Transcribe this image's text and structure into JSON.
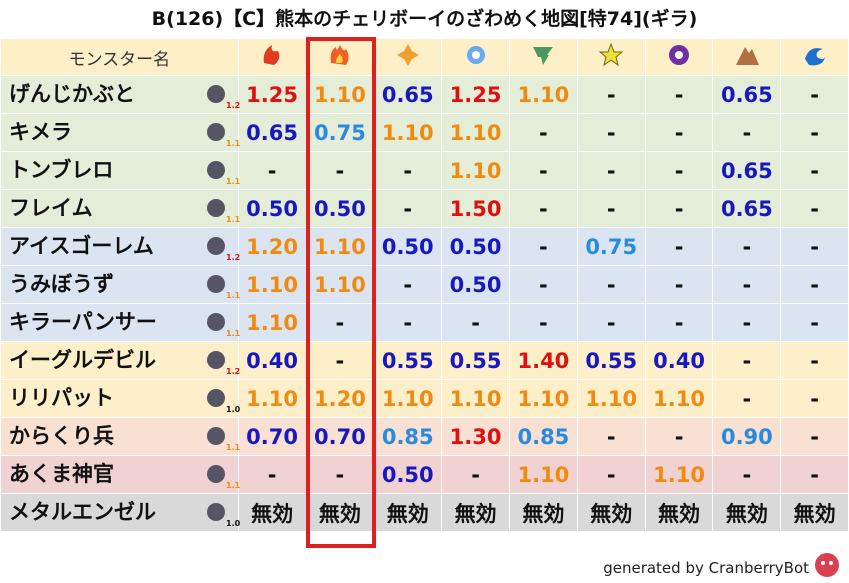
{
  "header": {
    "title": "B(126)【C】熊本のチェリボーイのざわめく地図[特74](ギラ)"
  },
  "table": {
    "name_header": "モンスター名",
    "rows": [
      {
        "name": "げんじかぶと",
        "size": "1.2",
        "cells": [
          "1.25",
          "1.10",
          "0.65",
          "1.25",
          "1.10",
          "-",
          "-",
          "0.65",
          "-"
        ]
      },
      {
        "name": "キメラ",
        "size": "1.1",
        "cells": [
          "0.65",
          "0.75",
          "1.10",
          "1.10",
          "-",
          "-",
          "-",
          "-",
          "-"
        ]
      },
      {
        "name": "トンブレロ",
        "size": "1.1",
        "cells": [
          "-",
          "-",
          "-",
          "1.10",
          "-",
          "-",
          "-",
          "0.65",
          "-"
        ]
      },
      {
        "name": "フレイム",
        "size": "1.1",
        "cells": [
          "0.50",
          "0.50",
          "-",
          "1.50",
          "-",
          "-",
          "-",
          "0.65",
          "-"
        ]
      },
      {
        "name": "アイスゴーレム",
        "size": "1.2",
        "cells": [
          "1.20",
          "1.10",
          "0.50",
          "0.50",
          "-",
          "0.75",
          "-",
          "-",
          "-"
        ]
      },
      {
        "name": "うみぼうず",
        "size": "1.1",
        "cells": [
          "1.10",
          "1.10",
          "-",
          "0.50",
          "-",
          "-",
          "-",
          "-",
          "-"
        ]
      },
      {
        "name": "キラーパンサー",
        "size": "1.1",
        "cells": [
          "1.10",
          "-",
          "-",
          "-",
          "-",
          "-",
          "-",
          "-",
          "-"
        ]
      },
      {
        "name": "イーグルデビル",
        "size": "1.2",
        "cells": [
          "0.40",
          "-",
          "0.55",
          "0.55",
          "1.40",
          "0.55",
          "0.40",
          "-",
          "-"
        ]
      },
      {
        "name": "リリパット",
        "size": "1.0",
        "cells": [
          "1.10",
          "1.20",
          "1.10",
          "1.10",
          "1.10",
          "1.10",
          "1.10",
          "-",
          "-"
        ]
      },
      {
        "name": "からくり兵",
        "size": "1.1",
        "cells": [
          "0.70",
          "0.70",
          "0.85",
          "1.30",
          "0.85",
          "-",
          "-",
          "0.90",
          "-"
        ]
      },
      {
        "name": "あくま神官",
        "size": "1.1",
        "cells": [
          "-",
          "-",
          "0.50",
          "-",
          "1.10",
          "-",
          "1.10",
          "-",
          "-"
        ]
      },
      {
        "name": "メタルエンゼル",
        "size": "1.0",
        "cells": [
          "無効",
          "無効",
          "無効",
          "無効",
          "無効",
          "無効",
          "無効",
          "無効",
          "無効"
        ]
      }
    ]
  },
  "footer": "generated by CranberryBot"
}
